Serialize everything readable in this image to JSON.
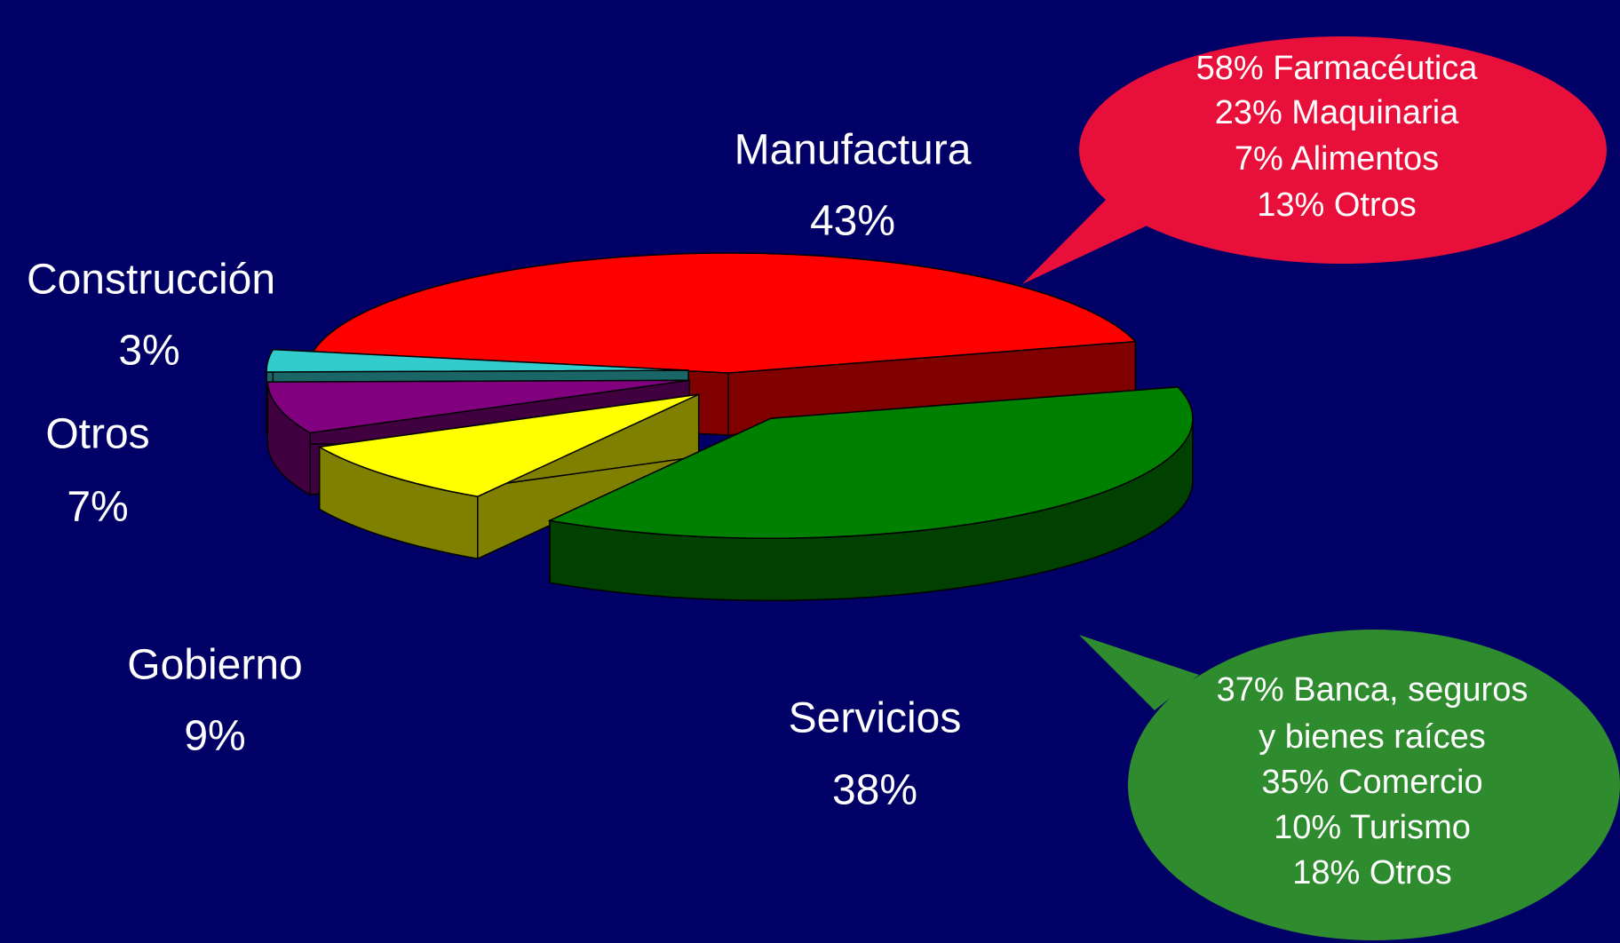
{
  "chart_data": {
    "type": "pie",
    "categories": [
      "Manufactura",
      "Servicios",
      "Gobierno",
      "Otros",
      "Construcción"
    ],
    "values": [
      43,
      38,
      9,
      7,
      3
    ],
    "value_labels": [
      "43%",
      "38%",
      "9%",
      "7%",
      "3%"
    ],
    "colors": [
      "#ff0000",
      "#008000",
      "#ffff00",
      "#800080",
      "#33cccc"
    ],
    "annotations": [
      {
        "lines": [
          "58% Farmacéutica",
          "23% Maquinaria",
          "7% Alimentos",
          "13% Otros"
        ],
        "color": "#e8103a"
      },
      {
        "lines": [
          "37% Banca, seguros",
          "y bienes raíces",
          "35% Comercio",
          "10% Turismo",
          "18% Otros"
        ],
        "color": "#2e8b2e"
      }
    ]
  }
}
